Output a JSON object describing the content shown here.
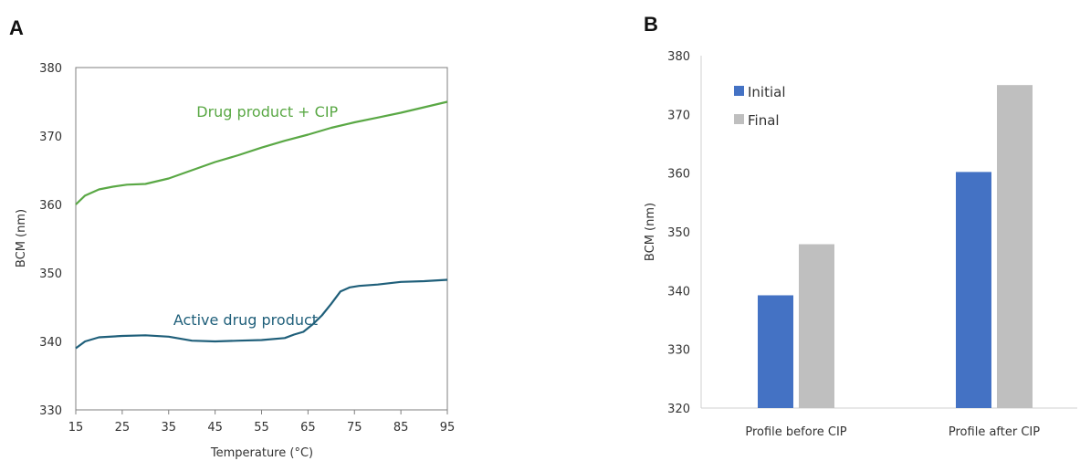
{
  "panels": {
    "a_letter": "A",
    "b_letter": "B"
  },
  "colors": {
    "drug_cip": "#5aa845",
    "active": "#1f5f7a",
    "initial": "#4472c4",
    "final": "#bfbfbf",
    "axis": "#7f7f7f",
    "grid": "#d9d9d9"
  },
  "chart_data": [
    {
      "type": "line",
      "panel": "A",
      "title": "",
      "xlabel": "Temperature (°C)",
      "ylabel": "BCM (nm)",
      "xlim": [
        15,
        95
      ],
      "ylim": [
        330,
        380
      ],
      "xticks": [
        15,
        25,
        35,
        45,
        55,
        65,
        75,
        85,
        95
      ],
      "yticks": [
        330,
        340,
        350,
        360,
        370,
        380
      ],
      "grid": false,
      "series": [
        {
          "name": "Drug product + CIP",
          "color": "#5aa845",
          "x": [
            15,
            17,
            20,
            23,
            26,
            30,
            35,
            40,
            45,
            50,
            55,
            60,
            65,
            70,
            75,
            80,
            85,
            90,
            95
          ],
          "y": [
            360.0,
            361.3,
            362.2,
            362.6,
            362.9,
            363.0,
            363.8,
            365.0,
            366.2,
            367.2,
            368.3,
            369.3,
            370.2,
            371.2,
            372.0,
            372.7,
            373.4,
            374.2,
            375.0
          ]
        },
        {
          "name": "Active drug product",
          "color": "#1f5f7a",
          "x": [
            15,
            17,
            20,
            25,
            30,
            35,
            40,
            45,
            50,
            55,
            60,
            62,
            64,
            66,
            68,
            70,
            72,
            74,
            76,
            80,
            85,
            90,
            95
          ],
          "y": [
            339.0,
            340.0,
            340.6,
            340.8,
            340.9,
            340.7,
            340.1,
            340.0,
            340.1,
            340.2,
            340.5,
            341.0,
            341.4,
            342.5,
            343.8,
            345.5,
            347.3,
            347.9,
            348.1,
            348.3,
            348.7,
            348.8,
            349.0
          ]
        }
      ],
      "annotations": [
        {
          "text": "Drug product + CIP",
          "x": 41,
          "y": 372.8,
          "color": "#5aa845"
        },
        {
          "text": "Active drug product",
          "x": 36,
          "y": 342.4,
          "color": "#1f5f7a"
        }
      ]
    },
    {
      "type": "bar",
      "panel": "B",
      "title": "",
      "xlabel": "",
      "ylabel": "BCM (nm)",
      "ylim": [
        320,
        380
      ],
      "yticks": [
        320,
        330,
        340,
        350,
        360,
        370,
        380
      ],
      "grid": false,
      "legend": "top-left",
      "categories": [
        "Profile before CIP",
        "Profile after CIP"
      ],
      "series": [
        {
          "name": "Initial",
          "color": "#4472c4",
          "values": [
            339.2,
            360.2
          ]
        },
        {
          "name": "Final",
          "color": "#bfbfbf",
          "values": [
            347.9,
            375.0
          ]
        }
      ]
    }
  ]
}
